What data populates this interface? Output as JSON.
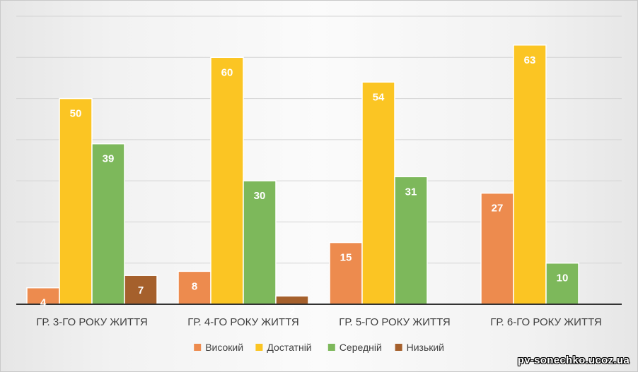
{
  "chart_data": {
    "type": "bar",
    "title": "",
    "xlabel": "",
    "ylabel": "",
    "categories": [
      "ГР. 3-ГО РОКУ ЖИТТЯ",
      "ГР. 4-ГО РОКУ ЖИТТЯ",
      "ГР. 5-ГО РОКУ ЖИТТЯ",
      "ГР. 6-ГО РОКУ ЖИТТЯ"
    ],
    "series": [
      {
        "name": "Високий",
        "color": "#ED8B4E",
        "values": [
          4,
          8,
          15,
          27
        ]
      },
      {
        "name": "Достатній",
        "color": "#FBC523",
        "values": [
          50,
          60,
          54,
          63
        ]
      },
      {
        "name": "Середній",
        "color": "#7DB85B",
        "values": [
          39,
          30,
          31,
          10
        ]
      },
      {
        "name": "Низький",
        "color": "#A5602C",
        "values": [
          7,
          2,
          null,
          null
        ]
      }
    ],
    "ylim": [
      0,
      70
    ],
    "grid": true,
    "legend_position": "bottom"
  },
  "watermark": "pv-sonechko.ucoz.ua"
}
